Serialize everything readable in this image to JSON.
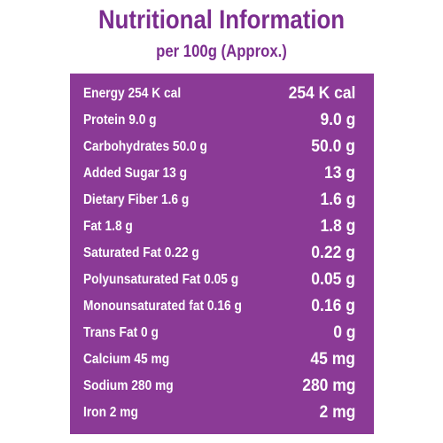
{
  "header": {
    "title": "Nutritional Information",
    "subtitle": "per 100g (Approx.)"
  },
  "colors": {
    "accent": "#7b2d8e",
    "panel": "#8b3a96",
    "text_on_panel": "#ffffff"
  },
  "nutrients": [
    {
      "label": "Energy 254 K cal",
      "value": "254 K cal"
    },
    {
      "label": "Protein 9.0 g",
      "value": "9.0 g"
    },
    {
      "label": "Carbohydrates 50.0 g",
      "value": "50.0 g"
    },
    {
      "label": "Added Sugar 13 g",
      "value": "13 g"
    },
    {
      "label": "Dietary Fiber 1.6 g",
      "value": "1.6 g"
    },
    {
      "label": "Fat 1.8 g",
      "value": "1.8 g"
    },
    {
      "label": "Saturated Fat 0.22 g",
      "value": "0.22 g"
    },
    {
      "label": "Polyunsaturated Fat 0.05 g",
      "value": "0.05 g"
    },
    {
      "label": "Monounsaturated fat 0.16 g",
      "value": "0.16 g"
    },
    {
      "label": "Trans Fat 0 g",
      "value": "0 g"
    },
    {
      "label": "Calcium 45 mg",
      "value": "45 mg"
    },
    {
      "label": "Sodium 280 mg",
      "value": "280 mg"
    },
    {
      "label": "Iron 2 mg",
      "value": "2 mg"
    }
  ]
}
